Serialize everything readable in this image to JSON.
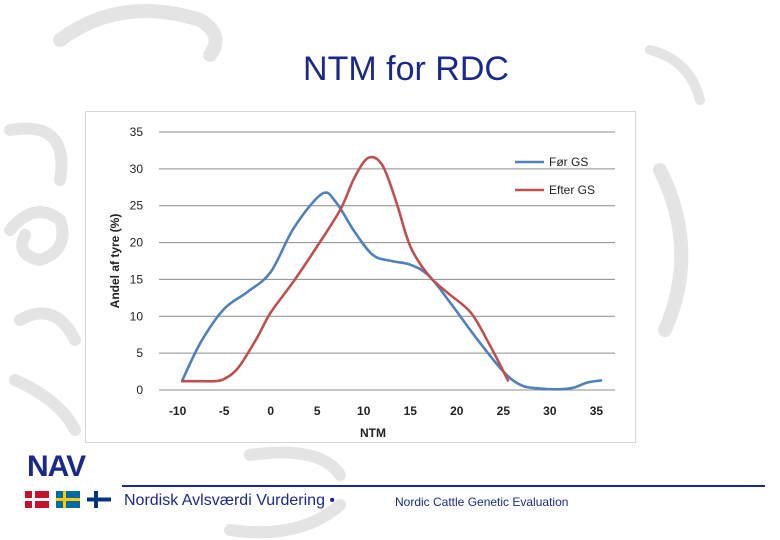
{
  "slide": {
    "title": "NTM for RDC",
    "brand": "NAV",
    "footer_left": "Nordisk Avlsværdi Vurdering •",
    "footer_right": "Nordic Cattle Genetic Evaluation"
  },
  "colors": {
    "title": "#1a2a8c",
    "series_before": "#4f81bd",
    "series_after": "#c0504d",
    "grid": "#8c8c8c",
    "deco": "#e4e4e4"
  },
  "chart_data": {
    "type": "line",
    "title": "",
    "xlabel": "NTM",
    "ylabel": "Andel af tyre (%)",
    "xlim": [
      -12,
      37
    ],
    "ylim": [
      0,
      35
    ],
    "xticks": [
      -10,
      -5,
      0,
      5,
      10,
      15,
      20,
      25,
      30,
      35
    ],
    "yticks": [
      0,
      5,
      10,
      15,
      20,
      25,
      30,
      35
    ],
    "grid": true,
    "legend": "top-right",
    "series": [
      {
        "name": "Før GS",
        "color": "#4f81bd",
        "x": [
          -9.5,
          -7.5,
          -5,
          -2.5,
          0,
          2.5,
          5.5,
          7,
          9,
          11,
          13,
          15,
          17,
          19.5,
          22,
          25,
          27,
          29,
          31,
          32.5,
          34,
          35.5
        ],
        "y": [
          1.3,
          6.5,
          11,
          13.3,
          16,
          22,
          26.6,
          25.5,
          21.5,
          18.3,
          17.5,
          17,
          15.5,
          11.5,
          7.2,
          2.5,
          0.6,
          0.2,
          0.1,
          0.3,
          1,
          1.3
        ]
      },
      {
        "name": "Efter GS",
        "color": "#c0504d",
        "x": [
          -9.5,
          -7.5,
          -6,
          -5,
          -3.5,
          -1.5,
          0,
          2.5,
          5,
          7.5,
          9,
          10.5,
          12,
          13.5,
          15,
          17,
          19,
          21.5,
          23.5,
          25.5
        ],
        "y": [
          1.2,
          1.2,
          1.2,
          1.5,
          3,
          7,
          10.5,
          14.8,
          19.5,
          24.5,
          28.8,
          31.5,
          30.5,
          25.5,
          19.5,
          15.5,
          13.2,
          10.5,
          6.2,
          1.3
        ]
      }
    ]
  }
}
